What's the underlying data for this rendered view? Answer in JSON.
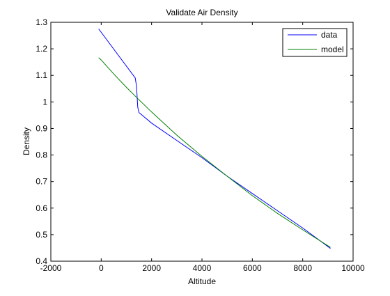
{
  "chart_data": {
    "type": "line",
    "title": "Validate Air Density",
    "xlabel": "Altitude",
    "ylabel": "Density",
    "xlim": [
      -2000,
      10000
    ],
    "ylim": [
      0.4,
      1.3
    ],
    "xticks": [
      -2000,
      0,
      2000,
      4000,
      6000,
      8000,
      10000
    ],
    "yticks": [
      0.4,
      0.5,
      0.6,
      0.7,
      0.8,
      0.9,
      1,
      1.1,
      1.2,
      1.3
    ],
    "xtick_labels": [
      "-2000",
      "0",
      "2000",
      "4000",
      "6000",
      "8000",
      "10000"
    ],
    "ytick_labels": [
      "0.4",
      "0.5",
      "0.6",
      "0.7",
      "0.8",
      "0.9",
      "1",
      "1.1",
      "1.2",
      "1.3"
    ],
    "grid": false,
    "legend": "top-right",
    "series": [
      {
        "name": "data",
        "color": "#0000ff",
        "x": [
          -100,
          1350,
          1400,
          1450,
          1500,
          2000,
          3000,
          4000,
          5000,
          6000,
          7000,
          8000,
          9100
        ],
        "y": [
          1.275,
          1.09,
          1.06,
          0.98,
          0.96,
          0.92,
          0.855,
          0.79,
          0.72,
          0.655,
          0.59,
          0.525,
          0.448
        ]
      },
      {
        "name": "model",
        "color": "#008000",
        "x": [
          -100,
          0,
          500,
          1000,
          1500,
          2000,
          3000,
          4000,
          5000,
          6000,
          7000,
          8000,
          9100
        ],
        "y": [
          1.167,
          1.158,
          1.105,
          1.055,
          1.008,
          0.962,
          0.875,
          0.795,
          0.72,
          0.647,
          0.58,
          0.518,
          0.452
        ]
      }
    ]
  }
}
